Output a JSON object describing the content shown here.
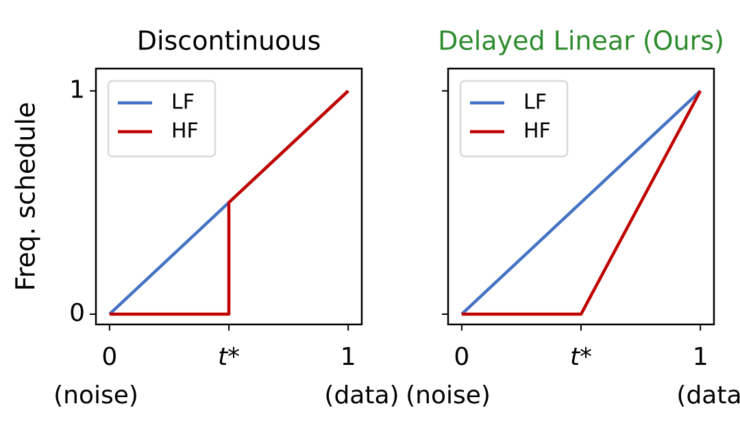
{
  "chart_data": [
    {
      "type": "line",
      "title": "Discontinuous",
      "title_color": "#000000",
      "ylabel": "Freq. schedule",
      "x": [
        0,
        0.5,
        0.5,
        1
      ],
      "series": [
        {
          "name": "LF",
          "color": "#4472c4",
          "values": [
            0,
            0.5,
            0.5,
            1
          ]
        },
        {
          "name": "HF",
          "color": "#c00000",
          "values": [
            0,
            0,
            0.5,
            1
          ]
        }
      ],
      "xlim": [
        -0.057,
        1.057
      ],
      "ylim": [
        -0.046,
        1.1
      ],
      "xticks": [
        0,
        {
          "value": 0.5,
          "label": "t*"
        },
        1
      ],
      "x_end_labels": [
        "(noise)",
        "(data)"
      ],
      "yticks": [
        0,
        1
      ],
      "show_ytick_labels": true,
      "legend": "upper left"
    },
    {
      "type": "line",
      "title": "Delayed Linear (Ours)",
      "title_color": "#2e8b2e",
      "x": [
        0,
        0.5,
        1
      ],
      "series": [
        {
          "name": "LF",
          "color": "#4472c4",
          "values": [
            0,
            0.5,
            1
          ]
        },
        {
          "name": "HF",
          "color": "#c00000",
          "values": [
            0,
            0,
            1
          ]
        }
      ],
      "xlim": [
        -0.057,
        1.057
      ],
      "ylim": [
        -0.046,
        1.1
      ],
      "xticks": [
        0,
        {
          "value": 0.5,
          "label": "t*"
        },
        1
      ],
      "x_end_labels": [
        "(noise)",
        "(data)"
      ],
      "yticks": [
        0,
        1
      ],
      "show_ytick_labels": false,
      "legend": "upper left"
    }
  ]
}
